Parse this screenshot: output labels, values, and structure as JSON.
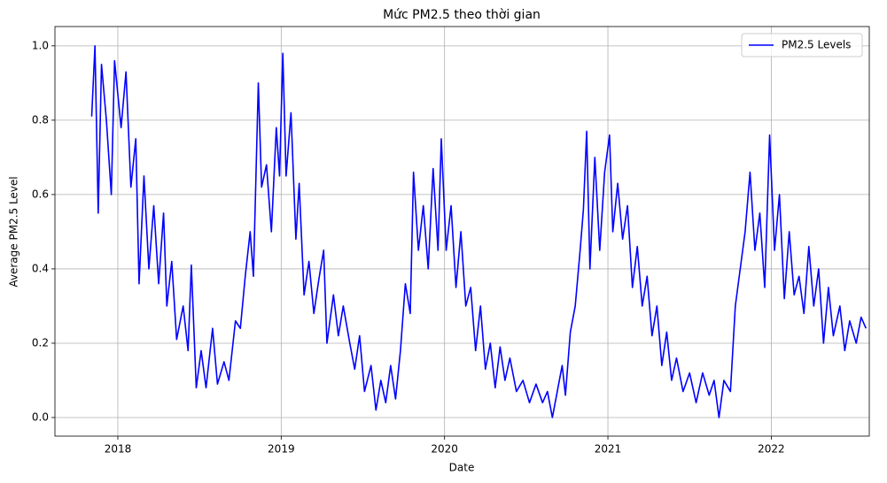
{
  "chart_data": {
    "type": "line",
    "title": "Mức PM2.5 theo thời gian",
    "x_label": "Date",
    "y_label": "Average PM2.5 Level",
    "x": [
      2017.84,
      2017.86,
      2017.88,
      2017.9,
      2017.93,
      2017.96,
      2017.98,
      2018.02,
      2018.05,
      2018.08,
      2018.11,
      2018.13,
      2018.16,
      2018.19,
      2018.22,
      2018.25,
      2018.28,
      2018.3,
      2018.33,
      2018.36,
      2018.4,
      2018.43,
      2018.45,
      2018.48,
      2018.51,
      2018.54,
      2018.58,
      2018.61,
      2018.65,
      2018.68,
      2018.72,
      2018.75,
      2018.78,
      2018.81,
      2018.83,
      2018.86,
      2018.88,
      2018.91,
      2018.94,
      2018.97,
      2018.99,
      2019.01,
      2019.03,
      2019.06,
      2019.09,
      2019.11,
      2019.14,
      2019.17,
      2019.2,
      2019.23,
      2019.26,
      2019.28,
      2019.32,
      2019.35,
      2019.38,
      2019.42,
      2019.45,
      2019.48,
      2019.51,
      2019.55,
      2019.58,
      2019.61,
      2019.64,
      2019.67,
      2019.7,
      2019.73,
      2019.76,
      2019.79,
      2019.81,
      2019.84,
      2019.87,
      2019.9,
      2019.93,
      2019.96,
      2019.98,
      2020.01,
      2020.04,
      2020.07,
      2020.1,
      2020.13,
      2020.16,
      2020.19,
      2020.22,
      2020.25,
      2020.28,
      2020.31,
      2020.34,
      2020.37,
      2020.4,
      2020.44,
      2020.48,
      2020.52,
      2020.56,
      2020.6,
      2020.63,
      2020.66,
      2020.69,
      2020.72,
      2020.74,
      2020.77,
      2020.8,
      2020.83,
      2020.85,
      2020.87,
      2020.89,
      2020.92,
      2020.95,
      2020.98,
      2021.01,
      2021.03,
      2021.06,
      2021.09,
      2021.12,
      2021.15,
      2021.18,
      2021.21,
      2021.24,
      2021.27,
      2021.3,
      2021.33,
      2021.36,
      2021.39,
      2021.42,
      2021.46,
      2021.5,
      2021.54,
      2021.58,
      2021.62,
      2021.65,
      2021.68,
      2021.71,
      2021.75,
      2021.78,
      2021.81,
      2021.84,
      2021.87,
      2021.9,
      2021.93,
      2021.96,
      2021.99,
      2022.02,
      2022.05,
      2022.08,
      2022.11,
      2022.14,
      2022.17,
      2022.2,
      2022.23,
      2022.26,
      2022.29,
      2022.32,
      2022.35,
      2022.38,
      2022.42,
      2022.45,
      2022.48,
      2022.52,
      2022.55,
      2022.58
    ],
    "series": [
      {
        "name": "PM2.5 Levels",
        "color": "#0000ff",
        "values": [
          0.81,
          1.0,
          0.55,
          0.95,
          0.8,
          0.6,
          0.96,
          0.78,
          0.93,
          0.62,
          0.75,
          0.36,
          0.65,
          0.4,
          0.57,
          0.36,
          0.55,
          0.3,
          0.42,
          0.21,
          0.3,
          0.18,
          0.41,
          0.08,
          0.18,
          0.08,
          0.24,
          0.09,
          0.15,
          0.1,
          0.26,
          0.24,
          0.38,
          0.5,
          0.38,
          0.9,
          0.62,
          0.68,
          0.5,
          0.78,
          0.65,
          0.98,
          0.65,
          0.82,
          0.48,
          0.63,
          0.33,
          0.42,
          0.28,
          0.37,
          0.45,
          0.2,
          0.33,
          0.22,
          0.3,
          0.2,
          0.13,
          0.22,
          0.07,
          0.14,
          0.02,
          0.1,
          0.04,
          0.14,
          0.05,
          0.18,
          0.36,
          0.28,
          0.66,
          0.45,
          0.57,
          0.4,
          0.67,
          0.45,
          0.75,
          0.45,
          0.57,
          0.35,
          0.5,
          0.3,
          0.35,
          0.18,
          0.3,
          0.13,
          0.2,
          0.08,
          0.19,
          0.1,
          0.16,
          0.07,
          0.1,
          0.04,
          0.09,
          0.04,
          0.07,
          0.0,
          0.07,
          0.14,
          0.06,
          0.23,
          0.3,
          0.45,
          0.56,
          0.77,
          0.4,
          0.7,
          0.45,
          0.66,
          0.76,
          0.5,
          0.63,
          0.48,
          0.57,
          0.35,
          0.46,
          0.3,
          0.38,
          0.22,
          0.3,
          0.14,
          0.23,
          0.1,
          0.16,
          0.07,
          0.12,
          0.04,
          0.12,
          0.06,
          0.1,
          0.0,
          0.1,
          0.07,
          0.3,
          0.4,
          0.5,
          0.66,
          0.45,
          0.55,
          0.35,
          0.76,
          0.45,
          0.6,
          0.32,
          0.5,
          0.33,
          0.38,
          0.28,
          0.46,
          0.3,
          0.4,
          0.2,
          0.35,
          0.22,
          0.3,
          0.18,
          0.26,
          0.2,
          0.27,
          0.24
        ]
      }
    ],
    "xlim": [
      2017.615,
      2022.6
    ],
    "xticks": [
      2018,
      2019,
      2020,
      2021,
      2022
    ],
    "ylim": [
      -0.05,
      1.052
    ],
    "yticks": [
      {
        "value": 0,
        "label": "0.0"
      },
      0.2,
      0.4,
      0.6,
      0.8,
      {
        "value": 1,
        "label": "1.0"
      }
    ],
    "grid": true,
    "legend": "upper right"
  }
}
